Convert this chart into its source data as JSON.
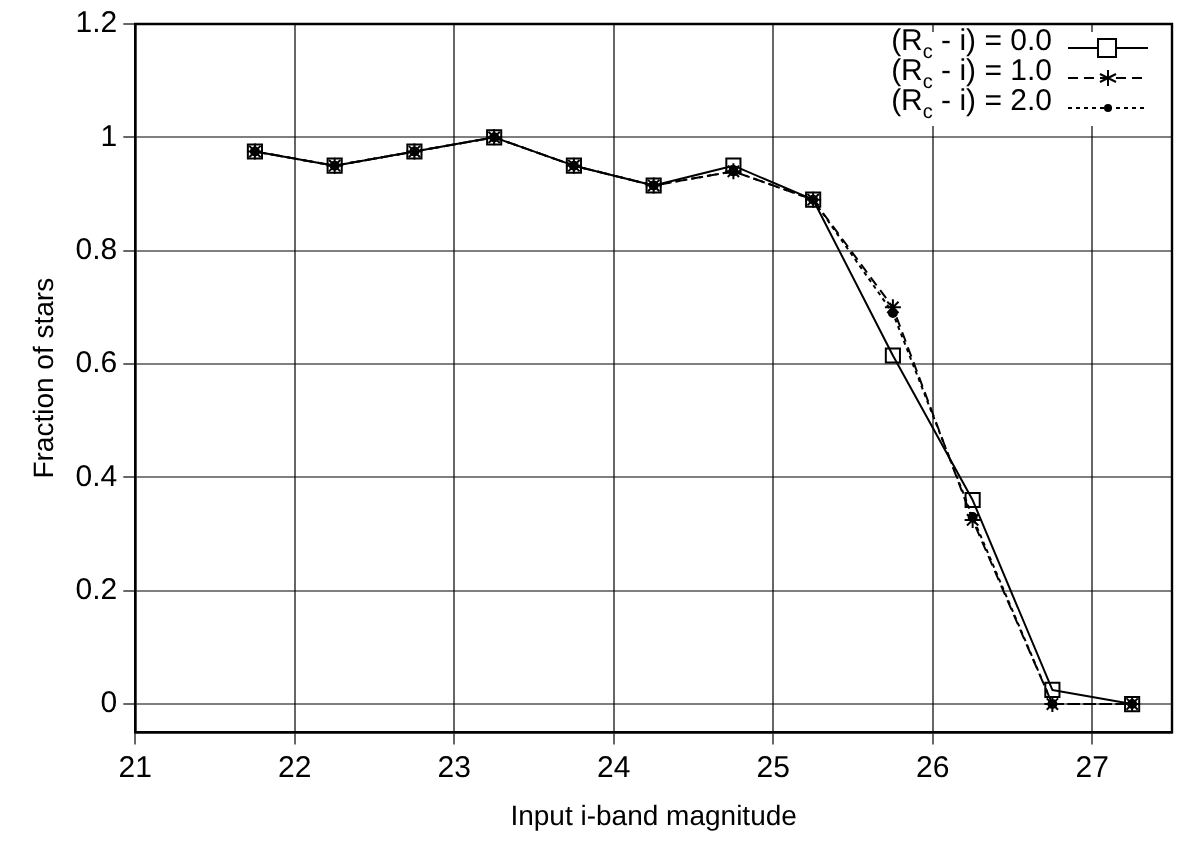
{
  "chart_data": {
    "type": "line",
    "xlabel": "Input i-band magnitude",
    "ylabel": "Fraction of stars",
    "xlim": [
      21,
      27.5
    ],
    "xticks": [
      21,
      22,
      23,
      24,
      25,
      26,
      27
    ],
    "ylim": [
      -0.05,
      1.2
    ],
    "yticks": [
      0,
      0.2,
      0.4,
      0.6,
      0.8,
      1,
      1.2
    ],
    "x": [
      21.75,
      22.25,
      22.75,
      23.25,
      23.75,
      24.25,
      24.75,
      25.25,
      25.75,
      26.25,
      26.75,
      27.25
    ],
    "grid": true,
    "legend": "top right",
    "series": [
      {
        "name": "(R$_{c}$ - i) = 0.0",
        "color": "#000000",
        "marker": "square",
        "line_style": "solid",
        "values": [
          0.975,
          0.95,
          0.975,
          1,
          0.95,
          0.915,
          0.95,
          0.89,
          0.615,
          0.36,
          0.025,
          0
        ]
      },
      {
        "name": "(R$_{c}$ - i) = 1.0",
        "color": "#000000",
        "marker": "cross",
        "line_style": "dashed",
        "values": [
          0.975,
          0.95,
          0.975,
          1,
          0.95,
          0.915,
          0.94,
          0.89,
          0.7,
          0.325,
          0,
          0
        ]
      },
      {
        "name": "(R$_{c}$ - i) = 2.0",
        "color": "#000000",
        "marker": "circle",
        "line_style": "dotted",
        "values": [
          0.975,
          0.95,
          0.975,
          1,
          0.95,
          0.915,
          0.94,
          0.89,
          0.69,
          0.33,
          0,
          0
        ]
      }
    ]
  }
}
